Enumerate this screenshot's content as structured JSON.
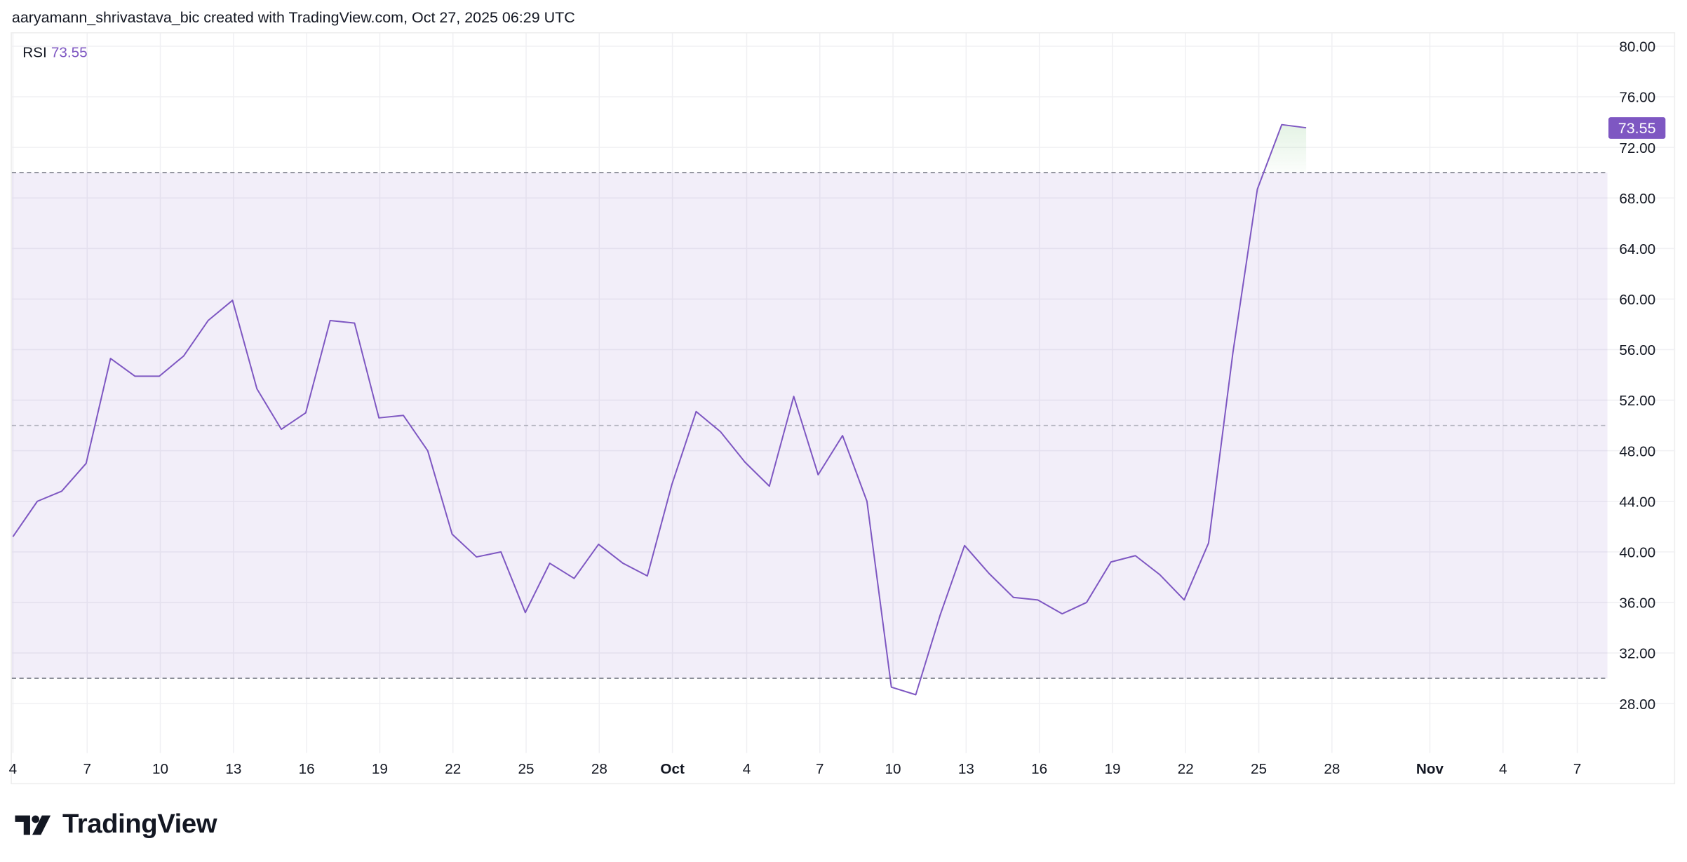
{
  "header": {
    "attribution": "aaryamann_shrivastava_bic created with TradingView.com, Oct 27, 2025 06:29 UTC"
  },
  "legend": {
    "indicator": "RSI",
    "value": "73.55"
  },
  "price_badge": {
    "value": "73.55",
    "color": "#7e57c2"
  },
  "logo": {
    "icon": "tradingview-logo-icon",
    "text": "TradingView"
  },
  "colors": {
    "line": "#7e57c2",
    "band_fill": "#7e57c21a",
    "band_border": "#787b86",
    "grid": "#f0f3fa",
    "overbought_fill": "#e8f5e9"
  },
  "chart_data": {
    "type": "line",
    "title": "RSI",
    "xlabel": "",
    "ylabel": "",
    "ylim": [
      25.5,
      80.5
    ],
    "y_ticks": [
      "80.00",
      "76.00",
      "72.00",
      "68.00",
      "64.00",
      "60.00",
      "56.00",
      "52.00",
      "48.00",
      "44.00",
      "40.00",
      "36.00",
      "32.00",
      "28.00"
    ],
    "x_tick_labels": [
      "4",
      "7",
      "10",
      "13",
      "16",
      "19",
      "22",
      "25",
      "28",
      "Oct",
      "4",
      "7",
      "10",
      "13",
      "16",
      "19",
      "22",
      "25",
      "28",
      "Nov",
      "4",
      "7"
    ],
    "bold_x_ticks": [
      "Oct",
      "Nov"
    ],
    "bands": {
      "upper": 70,
      "middle": 50,
      "lower": 30
    },
    "grid": true,
    "last_value": 73.55,
    "x": [
      "Sep 4",
      "Sep 5",
      "Sep 6",
      "Sep 7",
      "Sep 8",
      "Sep 9",
      "Sep 10",
      "Sep 11",
      "Sep 12",
      "Sep 13",
      "Sep 14",
      "Sep 15",
      "Sep 16",
      "Sep 17",
      "Sep 18",
      "Sep 19",
      "Sep 20",
      "Sep 21",
      "Sep 22",
      "Sep 23",
      "Sep 24",
      "Sep 25",
      "Sep 26",
      "Sep 27",
      "Sep 28",
      "Sep 29",
      "Sep 30",
      "Oct 1",
      "Oct 2",
      "Oct 3",
      "Oct 4",
      "Oct 5",
      "Oct 6",
      "Oct 7",
      "Oct 8",
      "Oct 9",
      "Oct 10",
      "Oct 11",
      "Oct 12",
      "Oct 13",
      "Oct 14",
      "Oct 15",
      "Oct 16",
      "Oct 17",
      "Oct 18",
      "Oct 19",
      "Oct 20",
      "Oct 21",
      "Oct 22",
      "Oct 23",
      "Oct 24",
      "Oct 25",
      "Oct 26",
      "Oct 27"
    ],
    "series": [
      {
        "name": "RSI",
        "values": [
          41.2,
          44.0,
          44.8,
          47.0,
          55.3,
          53.9,
          53.9,
          55.5,
          58.3,
          59.9,
          52.9,
          49.7,
          51.0,
          58.3,
          58.1,
          50.6,
          50.8,
          48.0,
          41.4,
          39.6,
          40.0,
          35.2,
          39.1,
          37.9,
          40.6,
          39.1,
          38.1,
          45.3,
          51.1,
          49.5,
          47.1,
          45.2,
          52.3,
          46.1,
          49.2,
          44.0,
          29.3,
          28.7,
          35.0,
          40.5,
          38.3,
          36.4,
          36.2,
          35.1,
          36.0,
          39.2,
          39.7,
          38.2,
          36.2,
          40.7,
          55.8,
          68.7,
          73.8,
          73.55
        ]
      }
    ]
  }
}
